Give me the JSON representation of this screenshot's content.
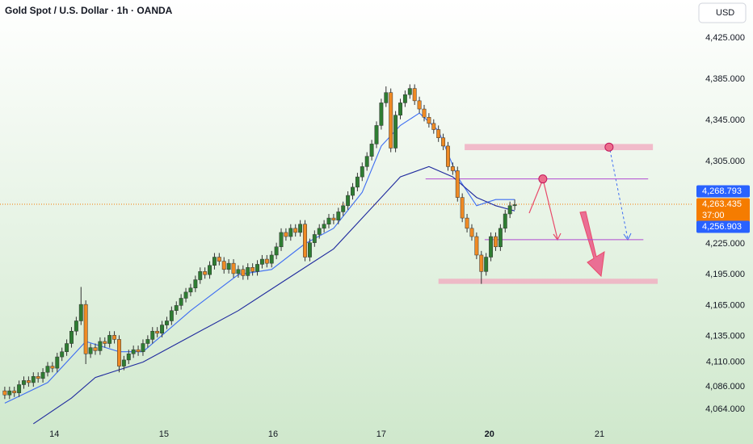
{
  "chart_data": {
    "type": "candlestick",
    "title": "Gold Spot / U.S. Dollar · 1h · OANDA",
    "currency": "USD",
    "up_color": "#2e7d32",
    "down_color": "#ef8a24",
    "xlim": [
      0,
      158
    ],
    "ylim": [
      4046,
      4462
    ],
    "yticks": [
      {
        "value": 4425,
        "label": "4,425.000"
      },
      {
        "value": 4385,
        "label": "4,385.000"
      },
      {
        "value": 4345,
        "label": "4,345.000"
      },
      {
        "value": 4305,
        "label": "4,305.000"
      },
      {
        "value": 4225,
        "label": "4,225.000"
      },
      {
        "value": 4195,
        "label": "4,195.000"
      },
      {
        "value": 4165,
        "label": "4,165.000"
      },
      {
        "value": 4135,
        "label": "4,135.000"
      },
      {
        "value": 4110,
        "label": "4,110.000"
      },
      {
        "value": 4086,
        "label": "4,086.000"
      },
      {
        "value": 4064,
        "label": "4,064.000"
      }
    ],
    "xticks": [
      {
        "value": 11.4,
        "label": "14"
      },
      {
        "value": 34.4,
        "label": "15"
      },
      {
        "value": 57.3,
        "label": "16"
      },
      {
        "value": 80,
        "label": "17"
      },
      {
        "value": 102.7,
        "label": "20"
      },
      {
        "value": 125.8,
        "label": "21"
      }
    ],
    "bold_xtick": 4,
    "x": [
      1,
      2,
      3,
      4,
      5,
      6,
      7,
      8,
      9,
      10,
      11,
      12,
      13,
      14,
      15,
      16,
      17,
      18,
      19,
      20,
      21,
      22,
      23,
      24,
      25,
      26,
      27,
      28,
      29,
      30,
      31,
      32,
      33,
      34,
      35,
      36,
      37,
      38,
      39,
      40,
      41,
      42,
      43,
      44,
      45,
      46,
      47,
      48,
      49,
      50,
      51,
      52,
      53,
      54,
      55,
      56,
      57,
      58,
      59,
      60,
      61,
      62,
      63,
      64,
      65,
      66,
      67,
      68,
      69,
      70,
      71,
      72,
      73,
      74,
      75,
      76,
      77,
      78,
      79,
      80,
      81,
      82,
      83,
      84,
      85,
      86,
      87,
      88,
      89,
      90,
      91,
      92,
      93,
      94,
      95,
      96,
      97,
      98,
      99,
      100,
      101,
      102,
      103,
      104,
      105,
      106,
      107,
      108
    ],
    "open": [
      4082,
      4078,
      4082,
      4080,
      4088,
      4092,
      4090,
      4096,
      4094,
      4100,
      4106,
      4104,
      4115,
      4120,
      4128,
      4140,
      4150,
      4166,
      4118,
      4124,
      4121,
      4130,
      4128,
      4136,
      4132,
      4106,
      4112,
      4118,
      4122,
      4120,
      4128,
      4132,
      4140,
      4138,
      4146,
      4150,
      4160,
      4165,
      4172,
      4178,
      4182,
      4190,
      4198,
      4195,
      4204,
      4212,
      4208,
      4200,
      4206,
      4196,
      4200,
      4194,
      4202,
      4198,
      4205,
      4210,
      4206,
      4214,
      4222,
      4236,
      4232,
      4240,
      4236,
      4244,
      4212,
      4226,
      4234,
      4240,
      4244,
      4250,
      4248,
      4256,
      4262,
      4272,
      4280,
      4290,
      4300,
      4310,
      4322,
      4340,
      4362,
      4372,
      4318,
      4350,
      4362,
      4370,
      4376,
      4364,
      4356,
      4348,
      4342,
      4336,
      4328,
      4320,
      4300,
      4296,
      4270,
      4250,
      4240,
      4232,
      4214,
      4198,
      4212,
      4232,
      4222,
      4240,
      4254,
      4262
    ],
    "high": [
      4086,
      4086,
      4086,
      4092,
      4096,
      4096,
      4100,
      4100,
      4104,
      4110,
      4110,
      4119,
      4124,
      4132,
      4144,
      4154,
      4183,
      4170,
      4128,
      4128,
      4134,
      4134,
      4140,
      4140,
      4136,
      4116,
      4122,
      4126,
      4126,
      4132,
      4136,
      4144,
      4144,
      4150,
      4154,
      4164,
      4169,
      4176,
      4182,
      4186,
      4194,
      4202,
      4202,
      4208,
      4216,
      4216,
      4212,
      4210,
      4210,
      4204,
      4204,
      4206,
      4206,
      4209,
      4214,
      4214,
      4218,
      4226,
      4240,
      4240,
      4244,
      4244,
      4248,
      4248,
      4230,
      4238,
      4244,
      4248,
      4254,
      4254,
      4260,
      4266,
      4276,
      4284,
      4294,
      4304,
      4314,
      4326,
      4344,
      4366,
      4378,
      4376,
      4354,
      4366,
      4374,
      4380,
      4380,
      4368,
      4360,
      4352,
      4346,
      4340,
      4332,
      4324,
      4304,
      4300,
      4274,
      4254,
      4244,
      4236,
      4218,
      4216,
      4236,
      4236,
      4244,
      4258,
      4266,
      4268
    ],
    "low": [
      4074,
      4074,
      4076,
      4076,
      4084,
      4086,
      4086,
      4090,
      4090,
      4096,
      4100,
      4100,
      4111,
      4116,
      4124,
      4136,
      4146,
      4108,
      4114,
      4117,
      4117,
      4124,
      4124,
      4128,
      4100,
      4102,
      4108,
      4114,
      4116,
      4116,
      4124,
      4128,
      4134,
      4134,
      4142,
      4146,
      4156,
      4161,
      4168,
      4174,
      4178,
      4186,
      4191,
      4191,
      4200,
      4204,
      4196,
      4196,
      4192,
      4192,
      4190,
      4190,
      4194,
      4194,
      4201,
      4202,
      4202,
      4210,
      4218,
      4228,
      4228,
      4232,
      4232,
      4208,
      4208,
      4222,
      4230,
      4236,
      4240,
      4244,
      4244,
      4252,
      4258,
      4268,
      4276,
      4286,
      4296,
      4306,
      4318,
      4336,
      4358,
      4314,
      4314,
      4346,
      4358,
      4366,
      4360,
      4352,
      4344,
      4338,
      4332,
      4324,
      4316,
      4296,
      4292,
      4266,
      4246,
      4236,
      4228,
      4210,
      4186,
      4194,
      4208,
      4218,
      4218,
      4236,
      4250,
      4258
    ],
    "close": [
      4078,
      4082,
      4080,
      4088,
      4092,
      4090,
      4096,
      4094,
      4100,
      4106,
      4104,
      4115,
      4120,
      4128,
      4140,
      4150,
      4166,
      4118,
      4124,
      4121,
      4130,
      4128,
      4136,
      4132,
      4106,
      4112,
      4118,
      4122,
      4120,
      4128,
      4132,
      4140,
      4138,
      4146,
      4150,
      4160,
      4165,
      4172,
      4178,
      4182,
      4190,
      4198,
      4195,
      4204,
      4212,
      4208,
      4200,
      4206,
      4196,
      4200,
      4194,
      4202,
      4198,
      4205,
      4210,
      4206,
      4214,
      4222,
      4236,
      4232,
      4240,
      4236,
      4244,
      4212,
      4226,
      4234,
      4240,
      4244,
      4250,
      4248,
      4256,
      4262,
      4272,
      4280,
      4290,
      4300,
      4310,
      4322,
      4340,
      4362,
      4372,
      4318,
      4350,
      4362,
      4370,
      4376,
      4364,
      4356,
      4348,
      4342,
      4336,
      4328,
      4320,
      4300,
      4296,
      4270,
      4250,
      4240,
      4232,
      4214,
      4198,
      4212,
      4232,
      4222,
      4240,
      4254,
      4262,
      4263
    ],
    "lines": [
      {
        "color": "#3d6df2",
        "x": [
          1,
          10,
          18,
          25,
          30,
          40,
          50,
          57,
          64,
          70,
          76,
          80,
          84,
          88,
          92,
          96,
          100,
          104,
          108
        ],
        "values": [
          4070,
          4090,
          4130,
          4120,
          4120,
          4160,
          4195,
          4200,
          4225,
          4240,
          4275,
          4320,
          4340,
          4352,
          4335,
          4290,
          4262,
          4268,
          4268
        ]
      },
      {
        "color": "#1f2a9e",
        "x": [
          7,
          15,
          20,
          30,
          40,
          50,
          60,
          70,
          78,
          84,
          90,
          95,
          100,
          104,
          108
        ],
        "values": [
          4050,
          4075,
          4095,
          4110,
          4135,
          4160,
          4190,
          4220,
          4260,
          4290,
          4300,
          4290,
          4270,
          4262,
          4257
        ]
      }
    ],
    "zones": [
      {
        "x": [
          97.5,
          137
        ],
        "low": 4316,
        "high": 4322
      },
      {
        "x": [
          92,
          138
        ],
        "low": 4186,
        "high": 4191
      }
    ],
    "levels": [
      {
        "x": [
          89.3,
          136
        ],
        "value": 4288
      },
      {
        "x": [
          101.7,
          135
        ],
        "value": 4229
      }
    ],
    "points": [
      {
        "x": 127.8,
        "value": 4319
      },
      {
        "x": 113.9,
        "value": 4288
      }
    ],
    "current_price": 4263.435,
    "price_labels": [
      {
        "value": 4268.793,
        "label": "4,268.793",
        "color": "#2962ff"
      },
      {
        "value": 4263.435,
        "label": "4,263.435",
        "color": "#f57c00",
        "countdown": "37:00"
      },
      {
        "value": 4256.903,
        "label": "4,256.903",
        "color": "#2962ff"
      }
    ]
  }
}
